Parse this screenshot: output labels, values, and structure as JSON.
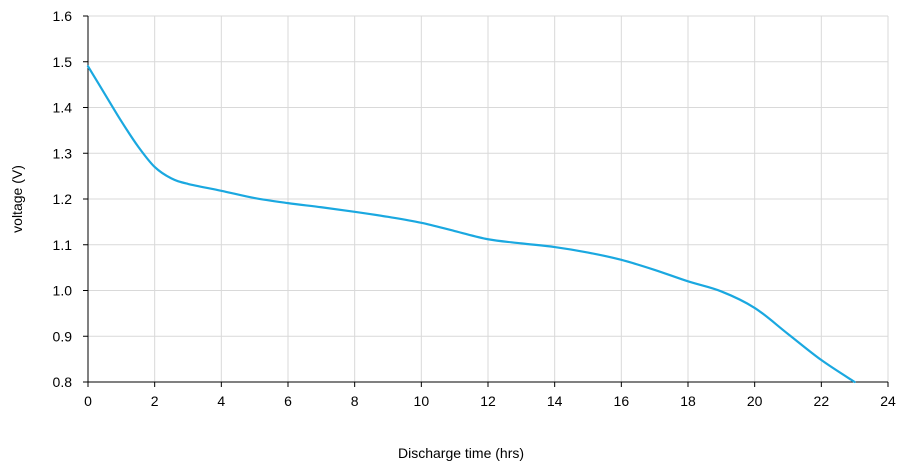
{
  "chart_data": {
    "type": "line",
    "title": "",
    "xlabel": "Discharge time (hrs)",
    "ylabel": "voltage (V)",
    "xlim": [
      0,
      24
    ],
    "ylim": [
      0.8,
      1.6
    ],
    "xticks": [
      "0",
      "2",
      "4",
      "6",
      "8",
      "10",
      "12",
      "14",
      "16",
      "18",
      "20",
      "22",
      "24"
    ],
    "yticks": [
      "0.8",
      "0.9",
      "1.0",
      "1.1",
      "1.2",
      "1.3",
      "1.4",
      "1.5",
      "1.6"
    ],
    "grid": true,
    "legend": "none",
    "colors": {
      "line": "#1aa8e0",
      "grid": "#d9d9d9",
      "axis": "#000000"
    },
    "series": [
      {
        "x": [
          0,
          0.5,
          1,
          1.5,
          2,
          2.5,
          3,
          4,
          5,
          6,
          7,
          8,
          9,
          10,
          11,
          12,
          13,
          14,
          15,
          16,
          17,
          18,
          19,
          20,
          21,
          22,
          23
        ],
        "y": [
          1.49,
          1.43,
          1.37,
          1.315,
          1.27,
          1.245,
          1.233,
          1.218,
          1.202,
          1.191,
          1.182,
          1.172,
          1.161,
          1.148,
          1.13,
          1.112,
          1.103,
          1.095,
          1.083,
          1.067,
          1.045,
          1.02,
          0.998,
          0.962,
          0.905,
          0.848,
          0.8
        ]
      }
    ]
  }
}
